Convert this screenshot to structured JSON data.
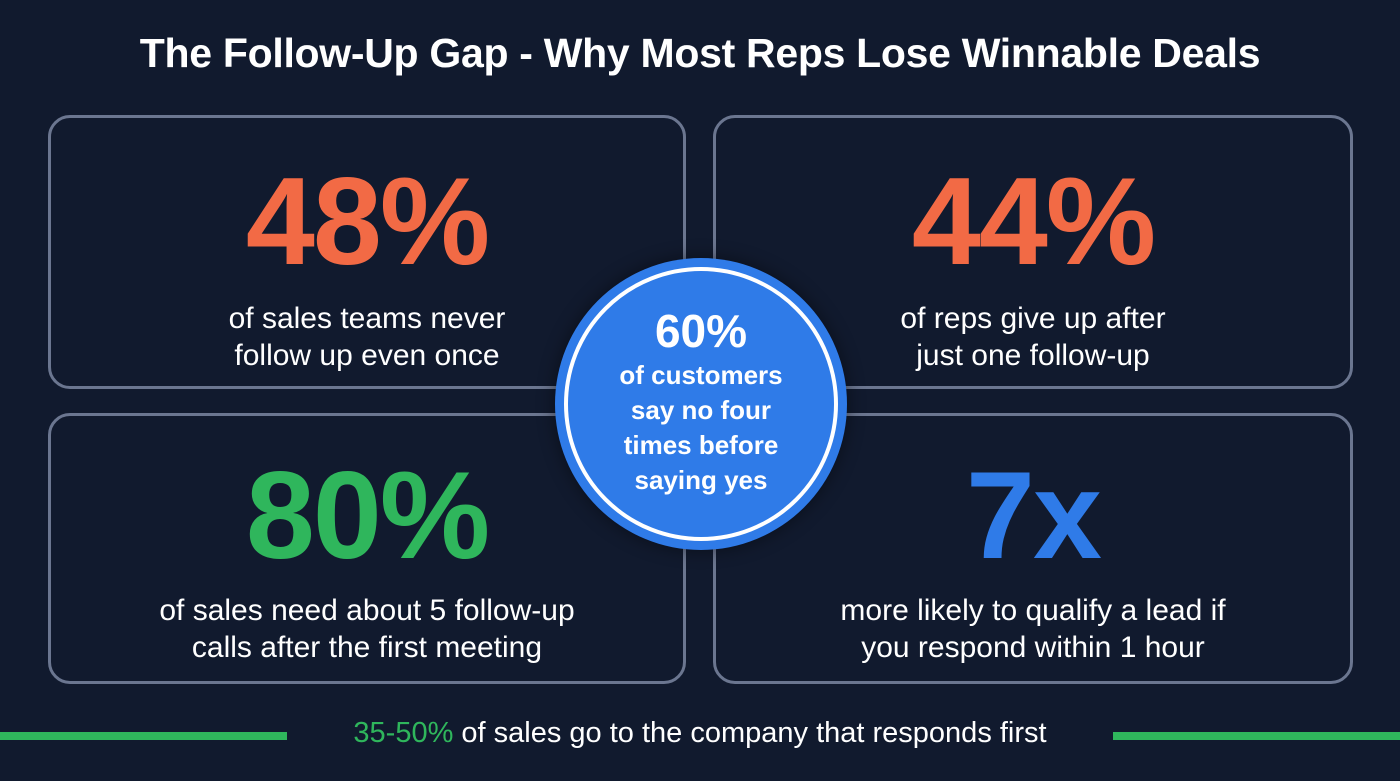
{
  "title": "The Follow-Up Gap - Why Most Reps Lose Winnable Deals",
  "colors": {
    "background": "#111a2e",
    "card_border": "#6b7690",
    "orange": "#f26a45",
    "green": "#2fb65c",
    "blue": "#2f7be8",
    "text": "#ffffff"
  },
  "stats": [
    {
      "value": "48%",
      "color": "orange",
      "line1": "of sales teams never",
      "line2": "follow up even once"
    },
    {
      "value": "44%",
      "color": "orange",
      "line1": "of reps give up after",
      "line2": "just one follow-up"
    },
    {
      "value": "80%",
      "color": "green",
      "line1": "of sales need about 5 follow-up",
      "line2": "calls after the first meeting"
    },
    {
      "value": "7x",
      "color": "blue",
      "line1": "more likely to qualify a lead if",
      "line2": "you respond within 1 hour"
    }
  ],
  "center": {
    "value": "60%",
    "lines": [
      "of customers",
      "say no four",
      "times before",
      "saying yes"
    ]
  },
  "footer": {
    "highlight": "35-50%",
    "text": " of sales go to the company that responds first"
  }
}
